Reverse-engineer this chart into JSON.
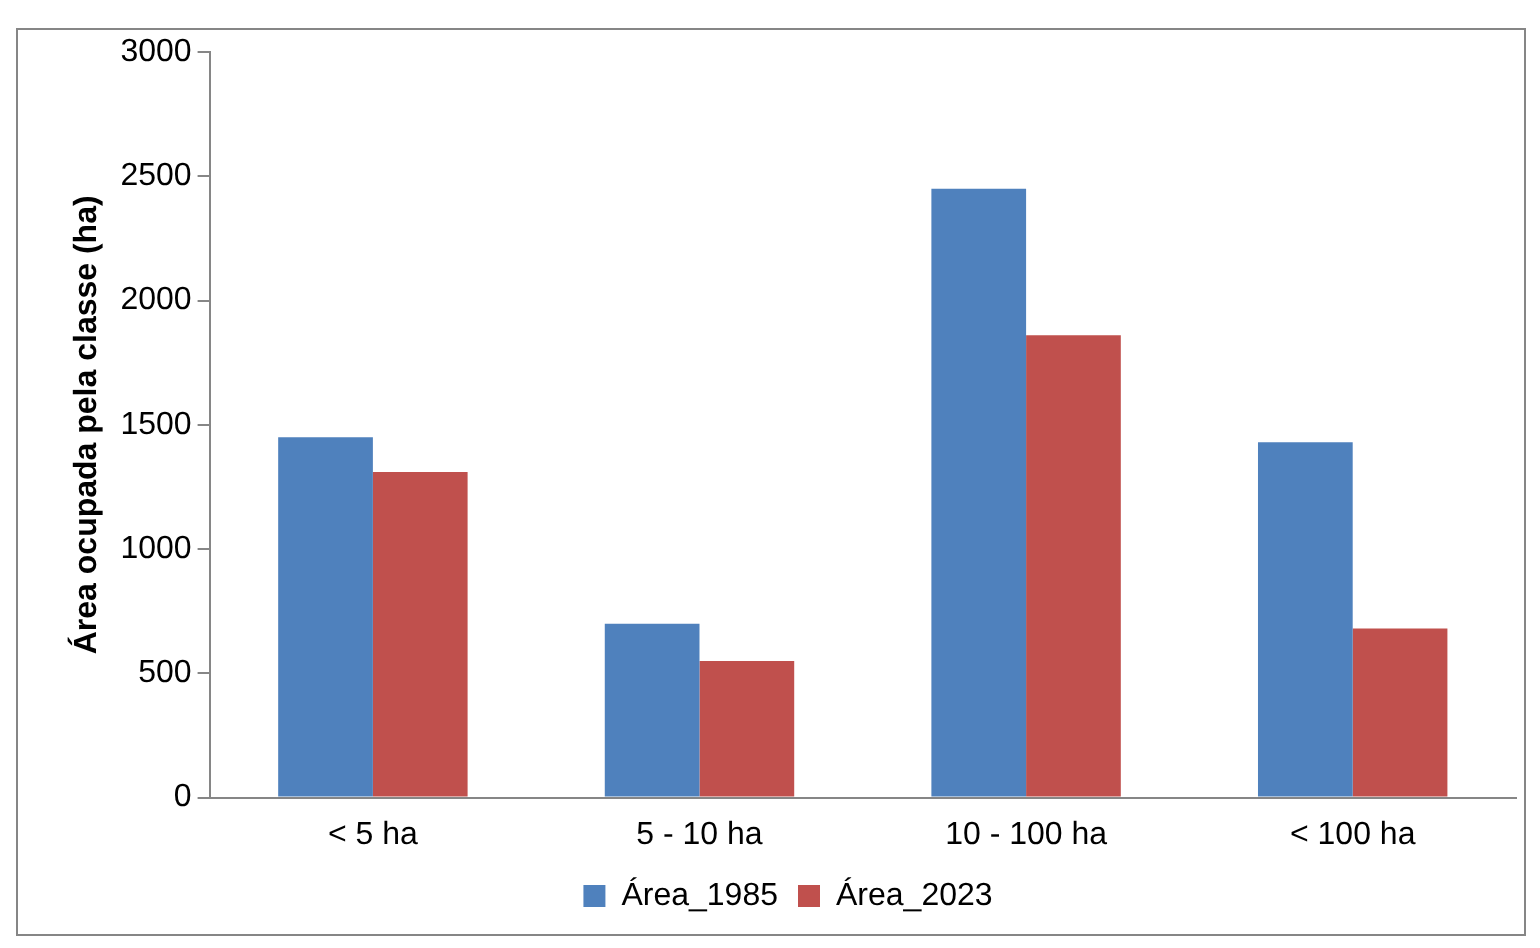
{
  "chart_data": {
    "type": "bar",
    "ylabel": "Área ocupada pela classe (ha)",
    "categories": [
      "< 5 ha",
      "5 - 10 ha",
      "10 - 100 ha",
      "< 100 ha"
    ],
    "series": [
      {
        "name": "Área_1985",
        "color": "#4f81bd",
        "values": [
          1450,
          700,
          2450,
          1430
        ]
      },
      {
        "name": "Área_2023",
        "color": "#c0504d",
        "values": [
          1310,
          550,
          1860,
          680
        ]
      }
    ],
    "ylim": [
      0,
      3000
    ],
    "yticks": [
      0,
      500,
      1000,
      1500,
      2000,
      2500,
      3000
    ],
    "grid": false,
    "legend": "bottom"
  }
}
